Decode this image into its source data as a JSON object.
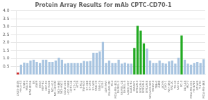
{
  "chart_data": {
    "type": "bar",
    "title": "Protein Array Results for mAb CPTC-CD70-1",
    "categories": [
      "LN2S-434N",
      "HeLa-S3",
      "K-562",
      "MOLT-4",
      "RPMI-8226",
      "SR",
      "A549",
      "EKVX",
      "HOP-62",
      "HOP-92",
      "NCI-H226",
      "NCI-H23",
      "NCI-H322M",
      "NCI-H460",
      "NCI-H522",
      "COLO-205",
      "HCC-2998",
      "HCT-116",
      "HCT-15",
      "HT29",
      "KM12",
      "SW-620",
      "SF-268",
      "SF-295",
      "SF-539",
      "SNB-19",
      "SNB-75",
      "U251",
      "LOX-IMVI",
      "MALME-3M",
      "M14",
      "MDA-MB-435",
      "SK-MEL-2",
      "SK-MEL-28",
      "SK-MEL-5",
      "UACC-257",
      "UACC-62",
      "IGROV1",
      "OVCAR-3",
      "OVCAR-4",
      "OVCAR-5",
      "OVCAR-8",
      "NCI/ADR-RES",
      "SK-OV-3",
      "786-0",
      "A498",
      "ACHN",
      "CAKI-1",
      "RXF-393",
      "SN12C",
      "TK-10",
      "UO-31",
      "PC-3",
      "DU-145",
      "MCF7",
      "MDA-MB-231",
      "HS-578T",
      "BT-549",
      "T-47D",
      "MDA-MB-468"
    ],
    "values": [
      0.12,
      0.62,
      0.75,
      0.72,
      0.88,
      0.92,
      0.78,
      0.72,
      0.92,
      0.92,
      0.78,
      0.78,
      0.88,
      1.05,
      0.92,
      0.68,
      0.72,
      0.72,
      0.72,
      0.72,
      0.72,
      0.85,
      0.82,
      0.85,
      1.35,
      1.35,
      1.45,
      2.05,
      0.72,
      0.88,
      0.72,
      0.72,
      0.92,
      0.68,
      0.75,
      0.68,
      0.68,
      1.65,
      3.05,
      2.75,
      1.95,
      1.62,
      0.88,
      0.72,
      0.72,
      0.88,
      0.72,
      0.68,
      0.82,
      0.88,
      0.68,
      1.05,
      2.45,
      0.92,
      0.68,
      0.62,
      0.72,
      0.78,
      0.72,
      0.95
    ],
    "colors": [
      "#cc2222",
      "#a8c4e0",
      "#a8c4e0",
      "#a8c4e0",
      "#a8c4e0",
      "#a8c4e0",
      "#a8c4e0",
      "#a8c4e0",
      "#a8c4e0",
      "#a8c4e0",
      "#a8c4e0",
      "#a8c4e0",
      "#a8c4e0",
      "#a8c4e0",
      "#a8c4e0",
      "#a8c4e0",
      "#a8c4e0",
      "#a8c4e0",
      "#a8c4e0",
      "#a8c4e0",
      "#a8c4e0",
      "#a8c4e0",
      "#a8c4e0",
      "#a8c4e0",
      "#a8c4e0",
      "#a8c4e0",
      "#a8c4e0",
      "#a8c4e0",
      "#a8c4e0",
      "#a8c4e0",
      "#a8c4e0",
      "#a8c4e0",
      "#a8c4e0",
      "#a8c4e0",
      "#a8c4e0",
      "#a8c4e0",
      "#a8c4e0",
      "#22aa22",
      "#22aa22",
      "#22aa22",
      "#22aa22",
      "#a8c4e0",
      "#a8c4e0",
      "#a8c4e0",
      "#a8c4e0",
      "#a8c4e0",
      "#a8c4e0",
      "#a8c4e0",
      "#a8c4e0",
      "#a8c4e0",
      "#a8c4e0",
      "#a8c4e0",
      "#22aa22",
      "#a8c4e0",
      "#a8c4e0",
      "#a8c4e0",
      "#a8c4e0",
      "#a8c4e0",
      "#a8c4e0",
      "#a8c4e0"
    ],
    "ylim": [
      0.0,
      4.0
    ],
    "yticks": [
      0.5,
      {
        "value": 1.0,
        "label": "1.0"
      },
      1.5,
      {
        "value": 2.0,
        "label": "2.0"
      },
      2.5,
      {
        "value": 3.0,
        "label": "3.0"
      },
      3.5,
      {
        "value": 4.0,
        "label": "4.0"
      }
    ],
    "grid": true
  }
}
